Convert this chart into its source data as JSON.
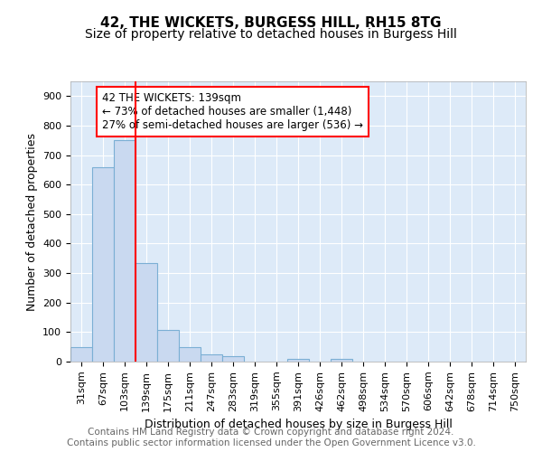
{
  "title1": "42, THE WICKETS, BURGESS HILL, RH15 8TG",
  "title2": "Size of property relative to detached houses in Burgess Hill",
  "xlabel": "Distribution of detached houses by size in Burgess Hill",
  "ylabel": "Number of detached properties",
  "bin_labels": [
    "31sqm",
    "67sqm",
    "103sqm",
    "139sqm",
    "175sqm",
    "211sqm",
    "247sqm",
    "283sqm",
    "319sqm",
    "355sqm",
    "391sqm",
    "426sqm",
    "462sqm",
    "498sqm",
    "534sqm",
    "570sqm",
    "606sqm",
    "642sqm",
    "678sqm",
    "714sqm",
    "750sqm"
  ],
  "bar_heights": [
    50,
    660,
    750,
    335,
    107,
    50,
    25,
    17,
    0,
    0,
    8,
    0,
    8,
    0,
    0,
    0,
    0,
    0,
    0,
    0,
    0
  ],
  "bar_color": "#c9d9f0",
  "bar_edge_color": "#7bafd4",
  "property_line_color": "red",
  "annotation_text": "42 THE WICKETS: 139sqm\n← 73% of detached houses are smaller (1,448)\n27% of semi-detached houses are larger (536) →",
  "ylim": [
    0,
    950
  ],
  "yticks": [
    0,
    100,
    200,
    300,
    400,
    500,
    600,
    700,
    800,
    900
  ],
  "footer_text": "Contains HM Land Registry data © Crown copyright and database right 2024.\nContains public sector information licensed under the Open Government Licence v3.0.",
  "background_color": "#ddeaf8",
  "grid_color": "#ffffff",
  "title_fontsize": 11,
  "subtitle_fontsize": 10,
  "axis_label_fontsize": 9,
  "tick_fontsize": 8,
  "footer_fontsize": 7.5
}
